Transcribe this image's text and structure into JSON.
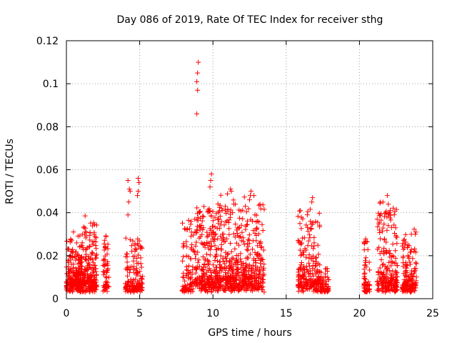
{
  "chart_data": {
    "type": "scatter",
    "title": "Day 086 of 2019, Rate Of TEC Index for receiver sthg",
    "xlabel": "GPS time / hours",
    "ylabel": "ROTI / TECUs",
    "xlim": [
      0,
      25
    ],
    "ylim": [
      0,
      0.12
    ],
    "xticks": [
      0,
      5,
      10,
      15,
      20,
      25
    ],
    "yticks": [
      0,
      0.02,
      0.04,
      0.06,
      0.08,
      0.1,
      0.12
    ],
    "xtick_labels": [
      "0",
      "5",
      "10",
      "15",
      "20",
      "25"
    ],
    "ytick_labels": [
      "0",
      "0.02",
      "0.04",
      "0.06",
      "0.08",
      "0.1",
      "0.12"
    ],
    "grid": true,
    "marker": "+",
    "marker_color": "#ff0000",
    "series": [
      {
        "name": "ROTI",
        "clusters": [
          {
            "x_start": 0.0,
            "x_end": 1.0,
            "y_base": 0.008,
            "y_peak": 0.032,
            "count": 220
          },
          {
            "x_start": 1.0,
            "x_end": 2.1,
            "y_base": 0.008,
            "y_peak": 0.04,
            "count": 220
          },
          {
            "x_start": 2.5,
            "x_end": 2.9,
            "y_base": 0.006,
            "y_peak": 0.032,
            "count": 60
          },
          {
            "x_start": 4.0,
            "x_end": 5.2,
            "y_base": 0.006,
            "y_peak": 0.03,
            "count": 150
          },
          {
            "x_start": 7.9,
            "x_end": 8.7,
            "y_base": 0.005,
            "y_peak": 0.038,
            "count": 90
          },
          {
            "x_start": 8.7,
            "x_end": 10.2,
            "y_base": 0.008,
            "y_peak": 0.046,
            "count": 240
          },
          {
            "x_start": 10.2,
            "x_end": 11.7,
            "y_base": 0.01,
            "y_peak": 0.05,
            "count": 260
          },
          {
            "x_start": 11.7,
            "x_end": 13.5,
            "y_base": 0.01,
            "y_peak": 0.05,
            "count": 280
          },
          {
            "x_start": 15.8,
            "x_end": 17.3,
            "y_base": 0.008,
            "y_peak": 0.046,
            "count": 220
          },
          {
            "x_start": 17.3,
            "x_end": 17.9,
            "y_base": 0.004,
            "y_peak": 0.015,
            "count": 60
          },
          {
            "x_start": 20.3,
            "x_end": 20.7,
            "y_base": 0.004,
            "y_peak": 0.03,
            "count": 60
          },
          {
            "x_start": 21.2,
            "x_end": 22.6,
            "y_base": 0.008,
            "y_peak": 0.048,
            "count": 220
          },
          {
            "x_start": 22.9,
            "x_end": 23.9,
            "y_base": 0.006,
            "y_peak": 0.034,
            "count": 160
          }
        ],
        "spikes": [
          {
            "x": 4.2,
            "y": 0.055
          },
          {
            "x": 4.3,
            "y": 0.051
          },
          {
            "x": 4.35,
            "y": 0.05
          },
          {
            "x": 4.25,
            "y": 0.045
          },
          {
            "x": 4.2,
            "y": 0.039
          },
          {
            "x": 4.9,
            "y": 0.056
          },
          {
            "x": 4.95,
            "y": 0.054
          },
          {
            "x": 4.9,
            "y": 0.05
          },
          {
            "x": 4.85,
            "y": 0.048
          },
          {
            "x": 9.0,
            "y": 0.11
          },
          {
            "x": 8.95,
            "y": 0.105
          },
          {
            "x": 8.9,
            "y": 0.101
          },
          {
            "x": 8.95,
            "y": 0.097
          },
          {
            "x": 8.9,
            "y": 0.086
          },
          {
            "x": 9.9,
            "y": 0.058
          },
          {
            "x": 9.85,
            "y": 0.055
          },
          {
            "x": 9.8,
            "y": 0.052
          },
          {
            "x": 11.2,
            "y": 0.051
          },
          {
            "x": 11.25,
            "y": 0.05
          },
          {
            "x": 12.6,
            "y": 0.05
          },
          {
            "x": 12.55,
            "y": 0.048
          },
          {
            "x": 12.5,
            "y": 0.046
          },
          {
            "x": 16.8,
            "y": 0.047
          },
          {
            "x": 16.75,
            "y": 0.045
          },
          {
            "x": 21.9,
            "y": 0.048
          }
        ]
      }
    ]
  }
}
